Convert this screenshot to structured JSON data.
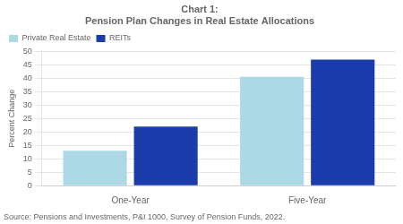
{
  "chart_data": {
    "type": "bar",
    "title": "Chart 1:\nPension Plan Changes in Real Estate Allocations",
    "categories": [
      "One-Year",
      "Five-Year"
    ],
    "series": [
      {
        "name": "Private Real Estate",
        "color": "#add8e6",
        "values": [
          13,
          40.5
        ]
      },
      {
        "name": "REITs",
        "color": "#1c3cab",
        "values": [
          22,
          47
        ]
      }
    ],
    "ylabel": "Percent Change",
    "ylim": [
      0,
      50
    ],
    "yticks": [
      0,
      5,
      10,
      15,
      20,
      25,
      30,
      35,
      40,
      45,
      50
    ],
    "grid": true,
    "legend": "upper left",
    "annotations": [
      "Source: Pensions and Investments, P&I 1000, Survey of Pension Funds, 2022."
    ]
  }
}
